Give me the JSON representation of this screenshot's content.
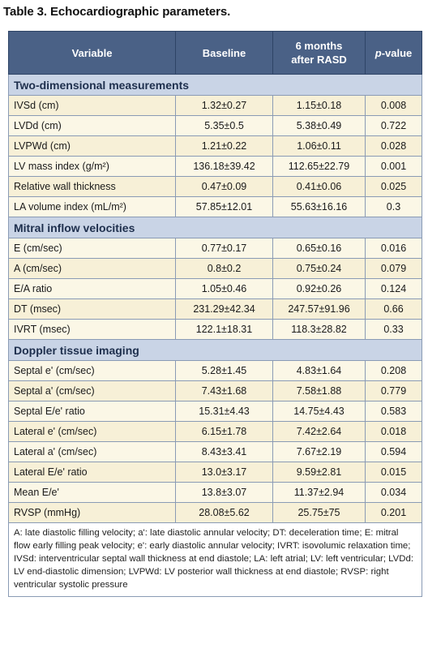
{
  "caption": "Table 3. Echocardiographic parameters.",
  "headers": {
    "variable": "Variable",
    "baseline": "Baseline",
    "after_line1": "6 months",
    "after_line2": "after RASD",
    "p_italic": "p",
    "p_rest": "-value"
  },
  "sections": [
    {
      "title": "Two-dimensional measurements",
      "rows": [
        {
          "variable": "IVSd (cm)",
          "baseline": "1.32±0.27",
          "after": "1.15±0.18",
          "p": "0.008"
        },
        {
          "variable": "LVDd (cm)",
          "baseline": "5.35±0.5",
          "after": "5.38±0.49",
          "p": "0.722"
        },
        {
          "variable": "LVPWd (cm)",
          "baseline": "1.21±0.22",
          "after": "1.06±0.11",
          "p": "0.028"
        },
        {
          "variable": "LV mass index (g/m²)",
          "baseline": "136.18±39.42",
          "after": "112.65±22.79",
          "p": "0.001"
        },
        {
          "variable": "Relative wall thickness",
          "baseline": "0.47±0.09",
          "after": "0.41±0.06",
          "p": "0.025"
        },
        {
          "variable": "LA volume index (mL/m²)",
          "baseline": "57.85±12.01",
          "after": "55.63±16.16",
          "p": "0.3"
        }
      ]
    },
    {
      "title": "Mitral inflow velocities",
      "rows": [
        {
          "variable": "E (cm/sec)",
          "baseline": "0.77±0.17",
          "after": "0.65±0.16",
          "p": "0.016"
        },
        {
          "variable": "A (cm/sec)",
          "baseline": "0.8±0.2",
          "after": "0.75±0.24",
          "p": "0.079"
        },
        {
          "variable": "E/A ratio",
          "baseline": "1.05±0.46",
          "after": "0.92±0.26",
          "p": "0.124"
        },
        {
          "variable": "DT (msec)",
          "baseline": "231.29±42.34",
          "after": "247.57±91.96",
          "p": "0.66"
        },
        {
          "variable": "IVRT (msec)",
          "baseline": "122.1±18.31",
          "after": "118.3±28.82",
          "p": "0.33"
        }
      ]
    },
    {
      "title": "Doppler tissue imaging",
      "rows": [
        {
          "variable": "Septal e' (cm/sec)",
          "baseline": "5.28±1.45",
          "after": "4.83±1.64",
          "p": "0.208"
        },
        {
          "variable": "Septal a' (cm/sec)",
          "baseline": "7.43±1.68",
          "after": "7.58±1.88",
          "p": "0.779"
        },
        {
          "variable": "Septal E/e' ratio",
          "baseline": "15.31±4.43",
          "after": "14.75±4.43",
          "p": "0.583"
        },
        {
          "variable": "Lateral e' (cm/sec)",
          "baseline": "6.15±1.78",
          "after": "7.42±2.64",
          "p": "0.018"
        },
        {
          "variable": "Lateral a' (cm/sec)",
          "baseline": "8.43±3.41",
          "after": "7.67±2.19",
          "p": "0.594"
        },
        {
          "variable": "Lateral E/e' ratio",
          "baseline": "13.0±3.17",
          "after": "9.59±2.81",
          "p": "0.015"
        },
        {
          "variable": "Mean E/e'",
          "baseline": "13.8±3.07",
          "after": "11.37±2.94",
          "p": "0.034"
        },
        {
          "variable": "RVSP (mmHg)",
          "baseline": "28.08±5.62",
          "after": "25.75±75",
          "p": "0.201"
        }
      ]
    }
  ],
  "footnote": "A: late diastolic filling velocity;  a': late diastolic annular velocity; DT: deceleration time; E: mitral flow early filling peak velocity; e': early diastolic annular velocity; IVRT: isovolumic relaxation time; IVSd: interventricular septal wall thickness at end diastole; LA: left atrial; LV: left ventricular; LVDd: LV end-diastolic dimension; LVPWd: LV posterior wall thickness at end diastole; RVSP: right ventricular systolic pressure"
}
